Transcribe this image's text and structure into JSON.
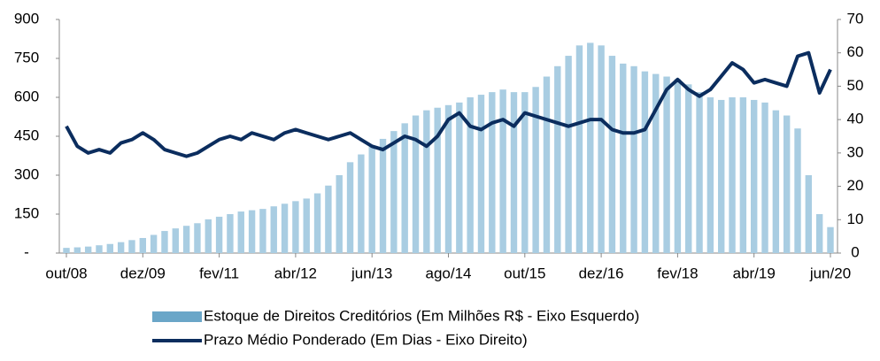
{
  "chart_data": {
    "type": "bar-line",
    "categories": [
      "out/08",
      null,
      null,
      null,
      null,
      null,
      null,
      "dez/09",
      null,
      null,
      null,
      null,
      null,
      null,
      "fev/11",
      null,
      null,
      null,
      null,
      null,
      null,
      "abr/12",
      null,
      null,
      null,
      null,
      null,
      null,
      "jun/13",
      null,
      null,
      null,
      null,
      null,
      null,
      "ago/14",
      null,
      null,
      null,
      null,
      null,
      null,
      "out/15",
      null,
      null,
      null,
      null,
      null,
      null,
      "dez/16",
      null,
      null,
      null,
      null,
      null,
      null,
      "fev/18",
      null,
      null,
      null,
      null,
      null,
      null,
      "abr/19",
      null,
      null,
      null,
      null,
      null,
      null,
      "jun/20"
    ],
    "series": [
      {
        "name": "Estoque de Direitos Creditórios (Em Milhões R$ - Eixo Esquerdo)",
        "type": "bar",
        "color": "#a9cde2",
        "values": [
          20,
          22,
          25,
          30,
          35,
          42,
          50,
          58,
          70,
          85,
          95,
          105,
          115,
          130,
          140,
          150,
          160,
          165,
          170,
          180,
          190,
          200,
          210,
          230,
          260,
          300,
          350,
          380,
          410,
          440,
          470,
          500,
          530,
          550,
          560,
          570,
          580,
          600,
          610,
          620,
          630,
          620,
          620,
          640,
          680,
          720,
          760,
          800,
          810,
          800,
          760,
          730,
          720,
          700,
          690,
          680,
          670,
          650,
          620,
          600,
          590,
          600,
          600,
          590,
          580,
          550,
          530,
          480,
          300,
          150,
          100
        ]
      },
      {
        "name": "Prazo Médio Ponderado (Em Dias - Eixo Direito)",
        "type": "line",
        "axis": "y2",
        "color": "#0b2d5e",
        "values": [
          38,
          32,
          30,
          31,
          30,
          33,
          34,
          36,
          34,
          31,
          30,
          29,
          30,
          32,
          34,
          35,
          34,
          36,
          35,
          34,
          36,
          37,
          36,
          35,
          34,
          35,
          36,
          34,
          32,
          31,
          33,
          35,
          34,
          32,
          35,
          40,
          42,
          38,
          37,
          39,
          40,
          38,
          42,
          41,
          40,
          39,
          38,
          39,
          40,
          40,
          37,
          36,
          36,
          37,
          43,
          49,
          52,
          49,
          47,
          49,
          53,
          57,
          55,
          51,
          52,
          51,
          50,
          59,
          60,
          48,
          55
        ]
      }
    ],
    "ylim": [
      0,
      900
    ],
    "yticks": [
      {
        "value": 0,
        "label": "-"
      },
      150,
      300,
      450,
      600,
      750,
      900
    ],
    "y2lim": [
      0,
      70
    ],
    "y2ticks": [
      0,
      10,
      20,
      30,
      40,
      50,
      60,
      70
    ]
  }
}
